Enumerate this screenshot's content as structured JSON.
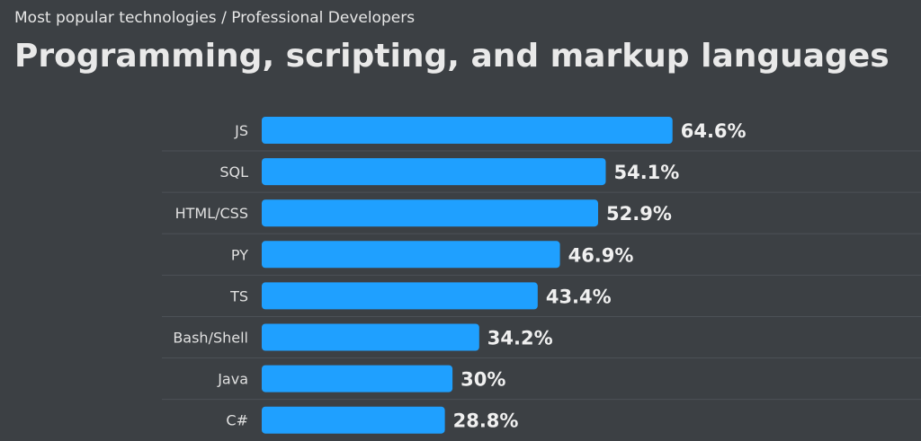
{
  "header": {
    "subtitle": "Most popular technologies / Professional Developers",
    "title": "Programming, scripting, and markup languages"
  },
  "colors": {
    "background": "#3c4044",
    "bar": "#1fa0ff",
    "text": "#e9e9e9"
  },
  "chart_data": {
    "type": "bar",
    "orientation": "horizontal",
    "categories": [
      "JS",
      "SQL",
      "HTML/CSS",
      "PY",
      "TS",
      "Bash/Shell",
      "Java",
      "C#"
    ],
    "values": [
      64.6,
      54.1,
      52.9,
      46.9,
      43.4,
      34.2,
      30,
      28.8
    ],
    "value_labels": [
      "64.6%",
      "54.1%",
      "52.9%",
      "46.9%",
      "43.4%",
      "34.2%",
      "30%",
      "28.8%"
    ],
    "xlim": [
      0,
      100
    ],
    "grid": false
  }
}
